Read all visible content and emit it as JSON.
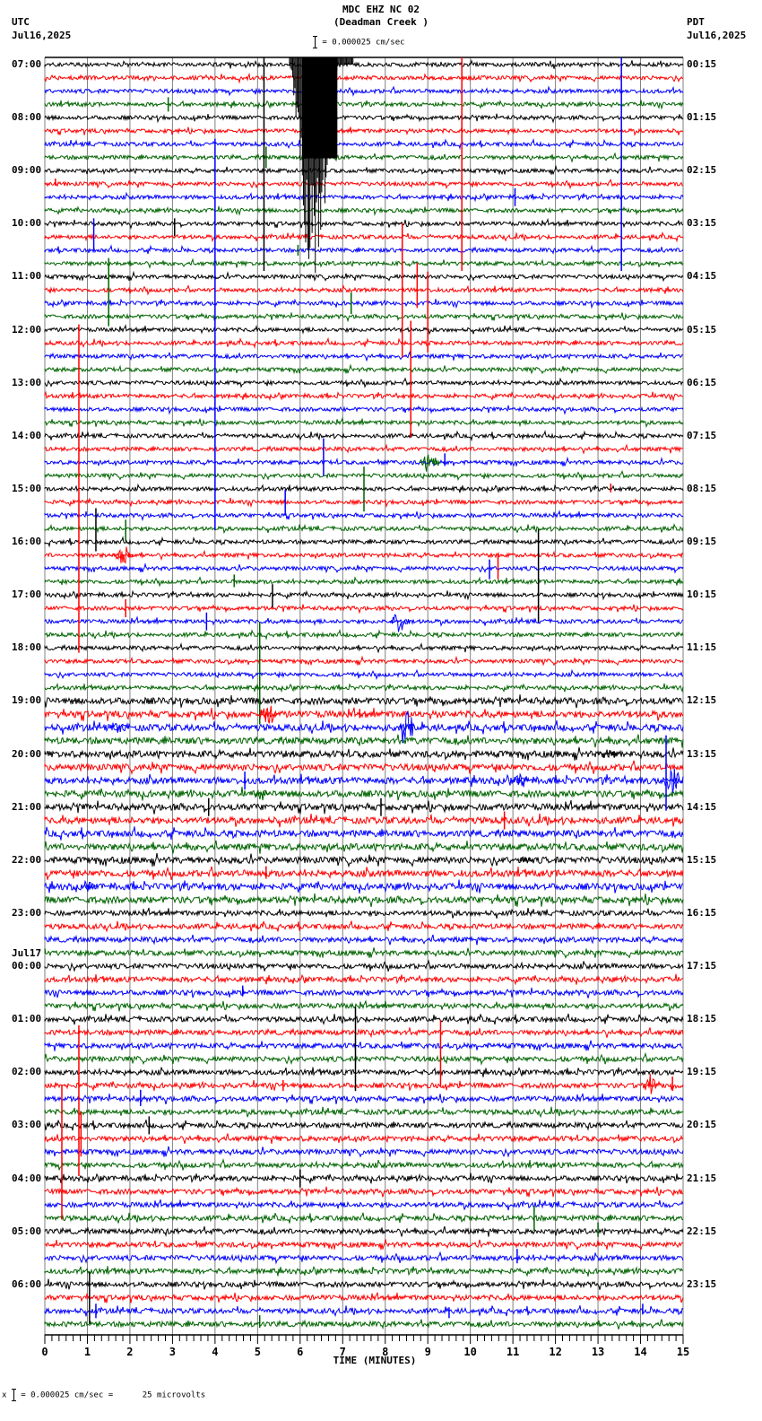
{
  "header": {
    "station": "MDC EHZ NC 02",
    "location": "(Deadman Creek )",
    "left_tz": "UTC",
    "left_date": "Jul16,2025",
    "right_tz": "PDT",
    "right_date": "Jul16,2025",
    "scale_text": "= 0.000025 cm/sec",
    "scale_icon": "scale-bar-icon"
  },
  "footer": {
    "prefix": "x",
    "text": "= 0.000025 cm/sec =      25 microvolts"
  },
  "colors": {
    "trace_cycle": [
      "#000000",
      "#ff0000",
      "#0000ff",
      "#006400"
    ],
    "grid": "#808080",
    "frame": "#000000"
  },
  "chart_data": {
    "type": "heatmap",
    "title": "MDC EHZ NC 02 (Deadman Creek )",
    "subtitle": "= 0.000025 cm/sec",
    "xlabel": "TIME (MINUTES)",
    "ylabel": "",
    "xlim": [
      0,
      15
    ],
    "x_ticks": [
      0,
      1,
      2,
      3,
      4,
      5,
      6,
      7,
      8,
      9,
      10,
      11,
      12,
      13,
      14,
      15
    ],
    "traces_per_hour": 4,
    "trace_minutes": 15,
    "grid": true,
    "left_axis_labels": [
      {
        "row": 0,
        "label": "07:00"
      },
      {
        "row": 4,
        "label": "08:00"
      },
      {
        "row": 8,
        "label": "09:00"
      },
      {
        "row": 12,
        "label": "10:00"
      },
      {
        "row": 16,
        "label": "11:00"
      },
      {
        "row": 20,
        "label": "12:00"
      },
      {
        "row": 24,
        "label": "13:00"
      },
      {
        "row": 28,
        "label": "14:00"
      },
      {
        "row": 32,
        "label": "15:00"
      },
      {
        "row": 36,
        "label": "16:00"
      },
      {
        "row": 40,
        "label": "17:00"
      },
      {
        "row": 44,
        "label": "18:00"
      },
      {
        "row": 48,
        "label": "19:00"
      },
      {
        "row": 52,
        "label": "20:00"
      },
      {
        "row": 56,
        "label": "21:00"
      },
      {
        "row": 60,
        "label": "22:00"
      },
      {
        "row": 64,
        "label": "23:00"
      },
      {
        "row": 68,
        "label": "00:00",
        "date": "Jul17"
      },
      {
        "row": 72,
        "label": "01:00"
      },
      {
        "row": 76,
        "label": "02:00"
      },
      {
        "row": 80,
        "label": "03:00"
      },
      {
        "row": 84,
        "label": "04:00"
      },
      {
        "row": 88,
        "label": "05:00"
      },
      {
        "row": 92,
        "label": "06:00"
      }
    ],
    "right_axis_labels": [
      {
        "row": 0,
        "label": "00:15"
      },
      {
        "row": 4,
        "label": "01:15"
      },
      {
        "row": 8,
        "label": "02:15"
      },
      {
        "row": 12,
        "label": "03:15"
      },
      {
        "row": 16,
        "label": "04:15"
      },
      {
        "row": 20,
        "label": "05:15"
      },
      {
        "row": 24,
        "label": "06:15"
      },
      {
        "row": 28,
        "label": "07:15"
      },
      {
        "row": 32,
        "label": "08:15"
      },
      {
        "row": 36,
        "label": "09:15"
      },
      {
        "row": 40,
        "label": "10:15"
      },
      {
        "row": 44,
        "label": "11:15"
      },
      {
        "row": 48,
        "label": "12:15"
      },
      {
        "row": 52,
        "label": "13:15"
      },
      {
        "row": 56,
        "label": "14:15"
      },
      {
        "row": 60,
        "label": "15:15"
      },
      {
        "row": 64,
        "label": "16:15"
      },
      {
        "row": 68,
        "label": "17:15"
      },
      {
        "row": 72,
        "label": "18:15"
      },
      {
        "row": 76,
        "label": "19:15"
      },
      {
        "row": 80,
        "label": "20:15"
      },
      {
        "row": 84,
        "label": "21:15"
      },
      {
        "row": 88,
        "label": "22:15"
      },
      {
        "row": 92,
        "label": "23:15"
      }
    ],
    "row_count": 96,
    "noise_profile": [
      {
        "from_row": 0,
        "to_row": 47,
        "amplitude": 2.2
      },
      {
        "from_row": 48,
        "to_row": 63,
        "amplitude": 3.6
      },
      {
        "from_row": 64,
        "to_row": 95,
        "amplitude": 2.8
      }
    ],
    "events": [
      {
        "row": 0,
        "minute": 6.5,
        "kind": "quake",
        "duration_min": 1.5,
        "amp_up": 10,
        "amp_down": 250,
        "color": "#000000"
      },
      {
        "row": 0,
        "minute": 5.15,
        "kind": "spike",
        "up": 8,
        "down": 230,
        "color": "#000000"
      },
      {
        "row": 0,
        "minute": 9.8,
        "kind": "spike",
        "up": 8,
        "down": 230,
        "color": "#ff0000"
      },
      {
        "row": 0,
        "minute": 13.55,
        "kind": "spike",
        "up": 8,
        "down": 230,
        "color": "#0000ff"
      },
      {
        "row": 3,
        "minute": 2.9,
        "kind": "spike",
        "up": 8,
        "down": 8,
        "color": "#006400"
      },
      {
        "row": 6,
        "minute": 4.0,
        "kind": "spike",
        "up": 6,
        "down": 430,
        "color": "#0000ff"
      },
      {
        "row": 7,
        "minute": 5.2,
        "kind": "spike",
        "up": 12,
        "down": 12,
        "color": "#006400"
      },
      {
        "row": 9,
        "minute": 0.25,
        "kind": "spike",
        "up": 6,
        "down": 2,
        "color": "#ff0000"
      },
      {
        "row": 10,
        "minute": 11.05,
        "kind": "spike",
        "up": 10,
        "down": 10,
        "color": "#0000ff"
      },
      {
        "row": 12,
        "minute": 1.15,
        "kind": "spike",
        "up": 6,
        "down": 30,
        "color": "#0000ff"
      },
      {
        "row": 12,
        "minute": 3.05,
        "kind": "spike",
        "up": 6,
        "down": 14,
        "color": "#000000"
      },
      {
        "row": 14,
        "minute": 5.95,
        "kind": "spike",
        "up": 6,
        "down": 6,
        "color": "#006400"
      },
      {
        "row": 15,
        "minute": 1.5,
        "kind": "spike",
        "up": 6,
        "down": 70,
        "color": "#006400"
      },
      {
        "row": 16,
        "minute": 8.4,
        "kind": "spike",
        "up": 60,
        "down": 90,
        "color": "#ff0000"
      },
      {
        "row": 17,
        "minute": 8.75,
        "kind": "spike",
        "up": 30,
        "down": 20,
        "color": "#ff0000"
      },
      {
        "row": 18,
        "minute": 7.2,
        "kind": "spike",
        "up": 12,
        "down": 12,
        "color": "#006400"
      },
      {
        "row": 19,
        "minute": 9.0,
        "kind": "spike",
        "up": 50,
        "down": 40,
        "color": "#ff0000"
      },
      {
        "row": 20,
        "minute": 0.8,
        "kind": "spike",
        "up": 6,
        "down": 360,
        "color": "#ff0000"
      },
      {
        "row": 20,
        "minute": 8.6,
        "kind": "spike",
        "up": 10,
        "down": 120,
        "color": "#ff0000"
      },
      {
        "row": 29,
        "minute": 6.55,
        "kind": "spike",
        "up": 12,
        "down": 30,
        "color": "#0000ff"
      },
      {
        "row": 30,
        "minute": 8.8,
        "kind": "burst",
        "duration_min": 0.5,
        "amp": 12,
        "color": "#006400"
      },
      {
        "row": 30,
        "minute": 9.4,
        "kind": "spike",
        "up": 10,
        "down": 4,
        "color": "#0000ff"
      },
      {
        "row": 31,
        "minute": 7.5,
        "kind": "spike",
        "up": 10,
        "down": 40,
        "color": "#006400"
      },
      {
        "row": 32,
        "minute": 13.3,
        "kind": "spike",
        "up": 6,
        "down": 4,
        "color": "#ff0000"
      },
      {
        "row": 33,
        "minute": 5.65,
        "kind": "spike",
        "up": 14,
        "down": 14,
        "color": "#0000ff"
      },
      {
        "row": 34,
        "minute": 1.2,
        "kind": "spike",
        "up": 8,
        "down": 40,
        "color": "#000000"
      },
      {
        "row": 35,
        "minute": 1.9,
        "kind": "spike",
        "up": 10,
        "down": 14,
        "color": "#006400"
      },
      {
        "row": 37,
        "minute": 1.6,
        "kind": "burst",
        "duration_min": 0.5,
        "amp": 12,
        "color": "#ff0000"
      },
      {
        "row": 36,
        "minute": 11.6,
        "kind": "spike",
        "up": 14,
        "down": 90,
        "color": "#000000"
      },
      {
        "row": 38,
        "minute": 10.45,
        "kind": "spike",
        "up": 10,
        "down": 12,
        "color": "#0000ff"
      },
      {
        "row": 38,
        "minute": 10.65,
        "kind": "spike",
        "up": 14,
        "down": 12,
        "color": "#ff0000"
      },
      {
        "row": 39,
        "minute": 4.45,
        "kind": "spike",
        "up": 8,
        "down": 6,
        "color": "#006400"
      },
      {
        "row": 40,
        "minute": 5.35,
        "kind": "spike",
        "up": 12,
        "down": 14,
        "color": "#000000"
      },
      {
        "row": 41,
        "minute": 1.9,
        "kind": "spike",
        "up": 10,
        "down": 10,
        "color": "#ff0000"
      },
      {
        "row": 42,
        "minute": 3.8,
        "kind": "spike",
        "up": 10,
        "down": 10,
        "color": "#0000ff"
      },
      {
        "row": 42,
        "minute": 8.1,
        "kind": "burst",
        "duration_min": 0.5,
        "amp": 12,
        "color": "#0000ff"
      },
      {
        "row": 43,
        "minute": 5.05,
        "kind": "spike",
        "up": 14,
        "down": 100,
        "color": "#006400"
      },
      {
        "row": 49,
        "minute": 5.0,
        "kind": "burst",
        "duration_min": 0.5,
        "amp": 12,
        "color": "#ff0000"
      },
      {
        "row": 49,
        "minute": 7.4,
        "kind": "spike",
        "up": 6,
        "down": 4,
        "color": "#ff0000"
      },
      {
        "row": 50,
        "minute": 8.3,
        "kind": "burst",
        "duration_min": 0.4,
        "amp": 24,
        "color": "#0000ff"
      },
      {
        "row": 50,
        "minute": 1.5,
        "kind": "burst",
        "duration_min": 0.5,
        "amp": 6,
        "color": "#0000ff"
      },
      {
        "row": 52,
        "minute": 13.0,
        "kind": "burst",
        "duration_min": 0.5,
        "amp": 6,
        "color": "#000000"
      },
      {
        "row": 54,
        "minute": 14.5,
        "kind": "burst",
        "duration_min": 0.5,
        "amp": 14,
        "color": "#0000ff"
      },
      {
        "row": 54,
        "minute": 11.0,
        "kind": "burst",
        "duration_min": 0.4,
        "amp": 8,
        "color": "#0000ff"
      },
      {
        "row": 54,
        "minute": 4.7,
        "kind": "spike",
        "up": 10,
        "down": 10,
        "color": "#0000ff"
      },
      {
        "row": 55,
        "minute": 4.9,
        "kind": "burst",
        "duration_min": 0.4,
        "amp": 6,
        "color": "#006400"
      },
      {
        "row": 56,
        "minute": 3.85,
        "kind": "spike",
        "up": 10,
        "down": 10,
        "color": "#000000"
      },
      {
        "row": 56,
        "minute": 7.9,
        "kind": "spike",
        "up": 10,
        "down": 10,
        "color": "#000000"
      },
      {
        "row": 56,
        "minute": 14.6,
        "kind": "spike",
        "up": 80,
        "down": 4,
        "color": "#0000ff"
      },
      {
        "row": 57,
        "minute": 10.8,
        "kind": "spike",
        "up": 10,
        "down": 10,
        "color": "#ff0000"
      },
      {
        "row": 60,
        "minute": 11.15,
        "kind": "burst",
        "duration_min": 0.3,
        "amp": 6,
        "color": "#000000"
      },
      {
        "row": 61,
        "minute": 5.2,
        "kind": "spike",
        "up": 8,
        "down": 6,
        "color": "#ff0000"
      },
      {
        "row": 62,
        "minute": 0.9,
        "kind": "burst",
        "duration_min": 0.3,
        "amp": 5,
        "color": "#0000ff"
      },
      {
        "row": 70,
        "minute": 4.65,
        "kind": "spike",
        "up": 8,
        "down": 4,
        "color": "#0000ff"
      },
      {
        "row": 72,
        "minute": 7.3,
        "kind": "spike",
        "up": 14,
        "down": 80,
        "color": "#000000"
      },
      {
        "row": 73,
        "minute": 9.3,
        "kind": "spike",
        "up": 14,
        "down": 60,
        "color": "#ff0000"
      },
      {
        "row": 73,
        "minute": 0.8,
        "kind": "spike",
        "up": 8,
        "down": 160,
        "color": "#ff0000"
      },
      {
        "row": 77,
        "minute": 14.1,
        "kind": "burst",
        "duration_min": 0.3,
        "amp": 14,
        "color": "#ff0000"
      },
      {
        "row": 77,
        "minute": 14.75,
        "kind": "spike",
        "up": 10,
        "down": 6,
        "color": "#ff0000"
      },
      {
        "row": 77,
        "minute": 5.6,
        "kind": "spike",
        "up": 6,
        "down": 6,
        "color": "#ff0000"
      },
      {
        "row": 78,
        "minute": 2.25,
        "kind": "spike",
        "up": 10,
        "down": 8,
        "color": "#0000ff"
      },
      {
        "row": 80,
        "minute": 2.45,
        "kind": "spike",
        "up": 10,
        "down": 10,
        "color": "#000000"
      },
      {
        "row": 81,
        "minute": 0.4,
        "kind": "spike",
        "up": 60,
        "down": 90,
        "color": "#ff0000"
      },
      {
        "row": 81,
        "minute": 0.85,
        "kind": "spike",
        "up": 30,
        "down": 20,
        "color": "#ff0000"
      },
      {
        "row": 84,
        "minute": 6.0,
        "kind": "spike",
        "up": 10,
        "down": 10,
        "color": "#000000"
      },
      {
        "row": 87,
        "minute": 11.5,
        "kind": "spike",
        "up": 14,
        "down": 14,
        "color": "#006400"
      },
      {
        "row": 88,
        "minute": 13.0,
        "kind": "spike",
        "up": 10,
        "down": 6,
        "color": "#006400"
      },
      {
        "row": 90,
        "minute": 11.1,
        "kind": "spike",
        "up": 10,
        "down": 6,
        "color": "#0000ff"
      },
      {
        "row": 92,
        "minute": 1.05,
        "kind": "spike",
        "up": 14,
        "down": 44,
        "color": "#000000"
      },
      {
        "row": 94,
        "minute": 1.2,
        "kind": "spike",
        "up": 8,
        "down": 8,
        "color": "#0000ff"
      },
      {
        "row": 94,
        "minute": 9.5,
        "kind": "spike",
        "up": 4,
        "down": 8,
        "color": "#0000ff"
      },
      {
        "row": 94,
        "minute": 14.05,
        "kind": "spike",
        "up": 8,
        "down": 4,
        "color": "#0000ff"
      },
      {
        "row": 95,
        "minute": 5.05,
        "kind": "spike",
        "up": 10,
        "down": 4,
        "color": "#006400"
      }
    ]
  },
  "axis": {
    "x_title": "TIME (MINUTES)",
    "x_ticks": [
      "0",
      "1",
      "2",
      "3",
      "4",
      "5",
      "6",
      "7",
      "8",
      "9",
      "10",
      "11",
      "12",
      "13",
      "14",
      "15"
    ]
  }
}
